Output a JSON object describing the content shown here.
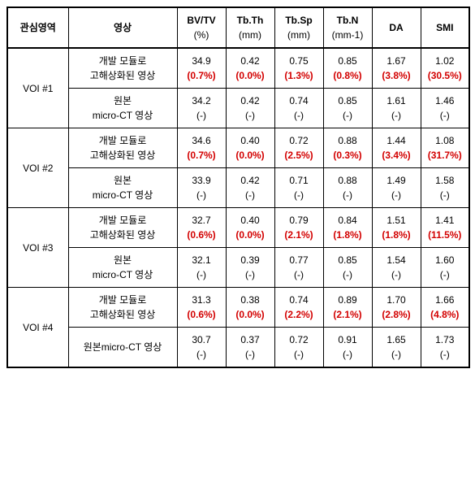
{
  "headers": {
    "region": "관심영역",
    "image": "영상",
    "metrics": [
      {
        "main": "BV/TV",
        "sub": "(%)"
      },
      {
        "main": "Tb.Th",
        "sub": "(mm)"
      },
      {
        "main": "Tb.Sp",
        "sub": "(mm)"
      },
      {
        "main": "Tb.N",
        "sub": "(mm-1)"
      },
      {
        "main": "DA",
        "sub": ""
      },
      {
        "main": "SMI",
        "sub": ""
      }
    ]
  },
  "row_labels": {
    "enhanced_l1": "개발 모듈로",
    "enhanced_l2": "고해상화된 영상",
    "orig_l1": "원본",
    "orig_l2": "micro-CT 영상",
    "orig_single": "원본micro-CT 영상"
  },
  "groups": [
    {
      "region": "VOI #1",
      "enhanced": {
        "vals": [
          "34.9",
          "0.42",
          "0.75",
          "0.85",
          "1.67",
          "1.02"
        ],
        "pcts": [
          "0.7%",
          "0.0%",
          "1.3%",
          "0.8%",
          "3.8%",
          "30.5%"
        ]
      },
      "orig": {
        "vals": [
          "34.2",
          "0.42",
          "0.74",
          "0.85",
          "1.61",
          "1.46"
        ]
      }
    },
    {
      "region": "VOI #2",
      "enhanced": {
        "vals": [
          "34.6",
          "0.40",
          "0.72",
          "0.88",
          "1.44",
          "1.08"
        ],
        "pcts": [
          "0.7%",
          "0.0%",
          "2.5%",
          "0.3%",
          "3.4%",
          "31.7%"
        ]
      },
      "orig": {
        "vals": [
          "33.9",
          "0.42",
          "0.71",
          "0.88",
          "1.49",
          "1.58"
        ]
      }
    },
    {
      "region": "VOI #3",
      "enhanced": {
        "vals": [
          "32.7",
          "0.40",
          "0.79",
          "0.84",
          "1.51",
          "1.41"
        ],
        "pcts": [
          "0.6%",
          "0.0%",
          "2.1%",
          "1.8%",
          "1.8%",
          "11.5%"
        ]
      },
      "orig": {
        "vals": [
          "32.1",
          "0.39",
          "0.77",
          "0.85",
          "1.54",
          "1.60"
        ]
      }
    },
    {
      "region": "VOI #4",
      "enhanced": {
        "vals": [
          "31.3",
          "0.38",
          "0.74",
          "0.89",
          "1.70",
          "1.66"
        ],
        "pcts": [
          "0.6%",
          "0.0%",
          "2.2%",
          "2.1%",
          "2.8%",
          "4.8%"
        ]
      },
      "orig_single": true,
      "orig": {
        "vals": [
          "30.7",
          "0.37",
          "0.72",
          "0.91",
          "1.65",
          "1.73"
        ]
      }
    }
  ],
  "dash": "(-)"
}
